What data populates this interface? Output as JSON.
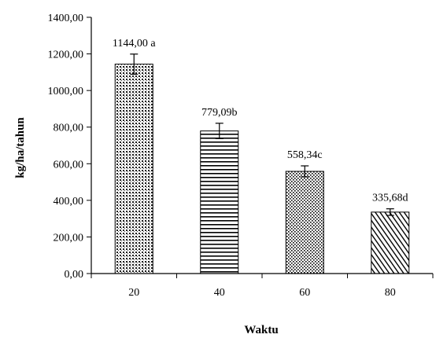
{
  "chart_data": {
    "type": "bar",
    "title": "",
    "xlabel": "Waktu",
    "ylabel": "kg/ha/tahun",
    "categories": [
      "20",
      "40",
      "60",
      "80"
    ],
    "values": [
      1144.0,
      779.09,
      558.34,
      335.68
    ],
    "error": [
      55,
      42,
      30,
      18
    ],
    "data_labels": [
      "1144,00 a",
      "779,09b",
      "558,34c",
      "335,68d"
    ],
    "ylim": [
      0,
      1400
    ],
    "yticks": [
      0,
      200,
      400,
      600,
      800,
      1000,
      1200,
      1400
    ],
    "ytick_labels": [
      "0,00",
      "200,00",
      "400,00",
      "600,00",
      "800,00",
      "1000,00",
      "1200,00",
      "1400,00"
    ],
    "grid": false,
    "legend": "none",
    "bar_patterns": [
      "dots-dense",
      "horizontal-lines",
      "dots-coarse",
      "diagonal-lines"
    ]
  }
}
